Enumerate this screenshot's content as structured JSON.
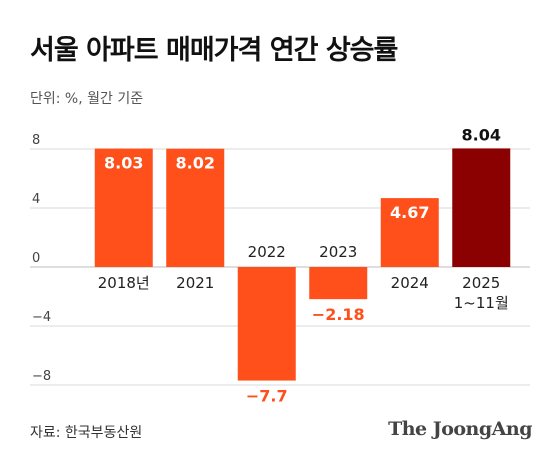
{
  "title": "서울 아파트 매매가격 연간 상승률",
  "unit": "단위: %, 월간 기준",
  "source": "자료: 한국부동산원",
  "brand": "The JoongAng",
  "colors": {
    "positive": "#ff4f1a",
    "negative": "#ff4f1a",
    "highlight": "#8b0000",
    "label_positive": "#ffffff",
    "label_negative": "#ff4f1a",
    "label_highlight": "#111111",
    "grid": "#d9d9d9"
  },
  "chart_data": {
    "type": "bar",
    "categories": [
      "2018년",
      "2021",
      "2022",
      "2023",
      "2024",
      "2025\n1~11월"
    ],
    "values": [
      8.03,
      8.02,
      -7.7,
      -2.18,
      4.67,
      8.04
    ],
    "value_labels": [
      "8.03",
      "8.02",
      "−7.7",
      "−2.18",
      "4.67",
      "8.04"
    ],
    "highlight_index": 5,
    "yticks": [
      8,
      4,
      0,
      -4,
      -8
    ],
    "ytick_labels": [
      "8",
      "4",
      "0",
      "−4",
      "−8"
    ],
    "ylim": [
      -8.2,
      8.5
    ],
    "grid": true,
    "title": "서울 아파트 매매가격 연간 상승률",
    "xlabel": "",
    "ylabel": ""
  }
}
